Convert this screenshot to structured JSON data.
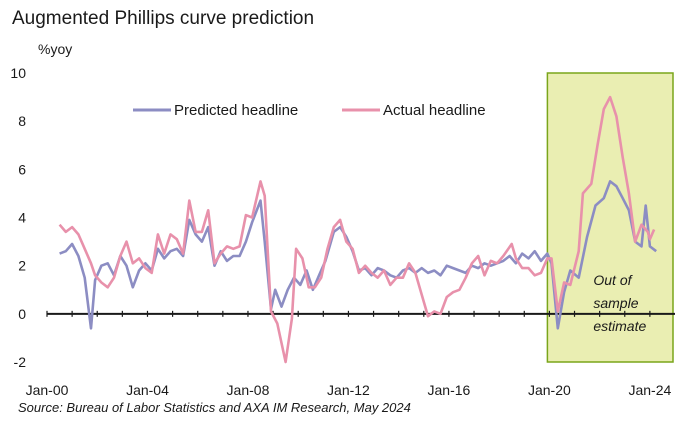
{
  "chart_data": {
    "type": "line",
    "title": "Augmented Phillips curve prediction",
    "ylabel": "%yoy",
    "ylim": [
      -2,
      10
    ],
    "yticks": [
      -2,
      0,
      2,
      4,
      6,
      8,
      10
    ],
    "xlim": [
      "2000-01",
      "2024-12"
    ],
    "xticks": [
      {
        "label": "Jan-00",
        "date": "2000-01"
      },
      {
        "label": "Jan-04",
        "date": "2004-01"
      },
      {
        "label": "Jan-08",
        "date": "2008-01"
      },
      {
        "label": "Jan-12",
        "date": "2012-01"
      },
      {
        "label": "Jan-16",
        "date": "2016-01"
      },
      {
        "label": "Jan-20",
        "date": "2020-01"
      },
      {
        "label": "Jan-24",
        "date": "2024-01"
      }
    ],
    "grid": false,
    "legend_position": "top-center",
    "highlight": {
      "from": "2020-01",
      "to": "2024-12",
      "color": "#eaeeb2",
      "border": "#7aa51a",
      "label": [
        "Out of",
        "sample",
        "estimate"
      ]
    },
    "series": [
      {
        "name": "Predicted headline",
        "color": "#8c8dc3",
        "points": [
          [
            "2000-07",
            2.5
          ],
          [
            "2000-10",
            2.6
          ],
          [
            "2001-01",
            2.9
          ],
          [
            "2001-04",
            2.4
          ],
          [
            "2001-07",
            1.5
          ],
          [
            "2001-10",
            -0.6
          ],
          [
            "2001-12",
            1.4
          ],
          [
            "2002-03",
            2.0
          ],
          [
            "2002-06",
            2.1
          ],
          [
            "2002-09",
            1.6
          ],
          [
            "2002-12",
            2.4
          ],
          [
            "2003-03",
            2.0
          ],
          [
            "2003-06",
            1.1
          ],
          [
            "2003-09",
            1.8
          ],
          [
            "2003-12",
            2.1
          ],
          [
            "2004-03",
            1.8
          ],
          [
            "2004-06",
            2.7
          ],
          [
            "2004-09",
            2.3
          ],
          [
            "2004-12",
            2.6
          ],
          [
            "2005-03",
            2.7
          ],
          [
            "2005-06",
            2.4
          ],
          [
            "2005-09",
            3.9
          ],
          [
            "2005-12",
            3.3
          ],
          [
            "2006-03",
            3.0
          ],
          [
            "2006-06",
            3.6
          ],
          [
            "2006-09",
            2.0
          ],
          [
            "2006-12",
            2.6
          ],
          [
            "2007-03",
            2.2
          ],
          [
            "2007-06",
            2.4
          ],
          [
            "2007-09",
            2.4
          ],
          [
            "2007-12",
            3.0
          ],
          [
            "2008-03",
            3.8
          ],
          [
            "2008-07",
            4.7
          ],
          [
            "2008-09",
            3.0
          ],
          [
            "2008-12",
            0.2
          ],
          [
            "2009-02",
            1.0
          ],
          [
            "2009-05",
            0.3
          ],
          [
            "2009-08",
            1.0
          ],
          [
            "2009-11",
            1.5
          ],
          [
            "2010-02",
            1.2
          ],
          [
            "2010-05",
            1.8
          ],
          [
            "2010-08",
            1.0
          ],
          [
            "2010-11",
            1.6
          ],
          [
            "2011-02",
            2.2
          ],
          [
            "2011-06",
            3.4
          ],
          [
            "2011-09",
            3.6
          ],
          [
            "2011-12",
            3.2
          ],
          [
            "2012-03",
            2.6
          ],
          [
            "2012-06",
            1.8
          ],
          [
            "2012-09",
            1.9
          ],
          [
            "2012-12",
            1.6
          ],
          [
            "2013-03",
            1.9
          ],
          [
            "2013-06",
            1.8
          ],
          [
            "2013-09",
            1.6
          ],
          [
            "2013-12",
            1.5
          ],
          [
            "2014-03",
            1.8
          ],
          [
            "2014-06",
            1.9
          ],
          [
            "2014-09",
            1.7
          ],
          [
            "2014-12",
            1.9
          ],
          [
            "2015-03",
            1.7
          ],
          [
            "2015-06",
            1.8
          ],
          [
            "2015-09",
            1.6
          ],
          [
            "2015-12",
            2.0
          ],
          [
            "2016-03",
            1.9
          ],
          [
            "2016-06",
            1.8
          ],
          [
            "2016-09",
            1.7
          ],
          [
            "2016-12",
            2.0
          ],
          [
            "2017-03",
            1.9
          ],
          [
            "2017-06",
            2.1
          ],
          [
            "2017-09",
            2.0
          ],
          [
            "2017-12",
            2.1
          ],
          [
            "2018-03",
            2.2
          ],
          [
            "2018-06",
            2.4
          ],
          [
            "2018-09",
            2.1
          ],
          [
            "2018-12",
            2.5
          ],
          [
            "2019-03",
            2.3
          ],
          [
            "2019-06",
            2.6
          ],
          [
            "2019-09",
            2.2
          ],
          [
            "2019-12",
            2.5
          ],
          [
            "2020-02",
            2.1
          ],
          [
            "2020-05",
            -0.6
          ],
          [
            "2020-08",
            0.9
          ],
          [
            "2020-11",
            1.8
          ],
          [
            "2021-03",
            1.5
          ],
          [
            "2021-07",
            3.2
          ],
          [
            "2021-11",
            4.5
          ],
          [
            "2022-03",
            4.8
          ],
          [
            "2022-06",
            5.5
          ],
          [
            "2022-09",
            5.3
          ],
          [
            "2022-12",
            4.8
          ],
          [
            "2023-03",
            4.3
          ],
          [
            "2023-06",
            3.0
          ],
          [
            "2023-09",
            2.8
          ],
          [
            "2023-11",
            4.5
          ],
          [
            "2024-01",
            2.8
          ],
          [
            "2024-04",
            2.6
          ]
        ]
      },
      {
        "name": "Actual headline",
        "color": "#e891ab",
        "points": [
          [
            "2000-07",
            3.7
          ],
          [
            "2000-10",
            3.4
          ],
          [
            "2001-01",
            3.6
          ],
          [
            "2001-04",
            3.3
          ],
          [
            "2001-07",
            2.7
          ],
          [
            "2001-10",
            2.1
          ],
          [
            "2001-12",
            1.6
          ],
          [
            "2002-03",
            1.3
          ],
          [
            "2002-06",
            1.1
          ],
          [
            "2002-09",
            1.5
          ],
          [
            "2002-12",
            2.4
          ],
          [
            "2003-03",
            3.0
          ],
          [
            "2003-06",
            2.1
          ],
          [
            "2003-09",
            2.3
          ],
          [
            "2003-12",
            1.9
          ],
          [
            "2004-03",
            1.7
          ],
          [
            "2004-06",
            3.3
          ],
          [
            "2004-09",
            2.5
          ],
          [
            "2004-12",
            3.3
          ],
          [
            "2005-03",
            3.1
          ],
          [
            "2005-06",
            2.5
          ],
          [
            "2005-09",
            4.7
          ],
          [
            "2005-12",
            3.4
          ],
          [
            "2006-03",
            3.4
          ],
          [
            "2006-06",
            4.3
          ],
          [
            "2006-09",
            2.1
          ],
          [
            "2006-12",
            2.5
          ],
          [
            "2007-03",
            2.8
          ],
          [
            "2007-06",
            2.7
          ],
          [
            "2007-09",
            2.8
          ],
          [
            "2007-12",
            4.1
          ],
          [
            "2008-03",
            4.0
          ],
          [
            "2008-07",
            5.5
          ],
          [
            "2008-09",
            4.9
          ],
          [
            "2008-12",
            0.1
          ],
          [
            "2009-03",
            -0.4
          ],
          [
            "2009-07",
            -2.0
          ],
          [
            "2009-10",
            -0.2
          ],
          [
            "2009-12",
            2.7
          ],
          [
            "2010-03",
            2.3
          ],
          [
            "2010-06",
            1.1
          ],
          [
            "2010-09",
            1.1
          ],
          [
            "2010-12",
            1.5
          ],
          [
            "2011-03",
            2.7
          ],
          [
            "2011-06",
            3.6
          ],
          [
            "2011-09",
            3.9
          ],
          [
            "2011-12",
            3.0
          ],
          [
            "2012-03",
            2.7
          ],
          [
            "2012-06",
            1.7
          ],
          [
            "2012-09",
            2.0
          ],
          [
            "2012-12",
            1.7
          ],
          [
            "2013-03",
            1.5
          ],
          [
            "2013-06",
            1.8
          ],
          [
            "2013-09",
            1.2
          ],
          [
            "2013-12",
            1.5
          ],
          [
            "2014-03",
            1.5
          ],
          [
            "2014-06",
            2.1
          ],
          [
            "2014-09",
            1.7
          ],
          [
            "2014-12",
            0.8
          ],
          [
            "2015-03",
            -0.1
          ],
          [
            "2015-06",
            0.1
          ],
          [
            "2015-09",
            0.0
          ],
          [
            "2015-12",
            0.7
          ],
          [
            "2016-03",
            0.9
          ],
          [
            "2016-06",
            1.0
          ],
          [
            "2016-09",
            1.5
          ],
          [
            "2016-12",
            2.1
          ],
          [
            "2017-03",
            2.4
          ],
          [
            "2017-06",
            1.6
          ],
          [
            "2017-09",
            2.2
          ],
          [
            "2017-12",
            2.1
          ],
          [
            "2018-03",
            2.4
          ],
          [
            "2018-07",
            2.9
          ],
          [
            "2018-09",
            2.3
          ],
          [
            "2018-12",
            1.9
          ],
          [
            "2019-03",
            1.9
          ],
          [
            "2019-06",
            1.6
          ],
          [
            "2019-09",
            1.7
          ],
          [
            "2019-12",
            2.3
          ],
          [
            "2020-02",
            2.3
          ],
          [
            "2020-05",
            0.1
          ],
          [
            "2020-08",
            1.3
          ],
          [
            "2020-11",
            1.2
          ],
          [
            "2021-03",
            2.6
          ],
          [
            "2021-05",
            5.0
          ],
          [
            "2021-09",
            5.4
          ],
          [
            "2021-12",
            7.0
          ],
          [
            "2022-03",
            8.5
          ],
          [
            "2022-06",
            9.0
          ],
          [
            "2022-09",
            8.2
          ],
          [
            "2022-12",
            6.5
          ],
          [
            "2023-03",
            5.0
          ],
          [
            "2023-06",
            3.0
          ],
          [
            "2023-09",
            3.7
          ],
          [
            "2023-12",
            3.4
          ],
          [
            "2024-01",
            3.1
          ],
          [
            "2024-03",
            3.5
          ]
        ]
      }
    ],
    "source": "Source: Bureau of Labor Statistics and AXA IM Research, May 2024"
  }
}
